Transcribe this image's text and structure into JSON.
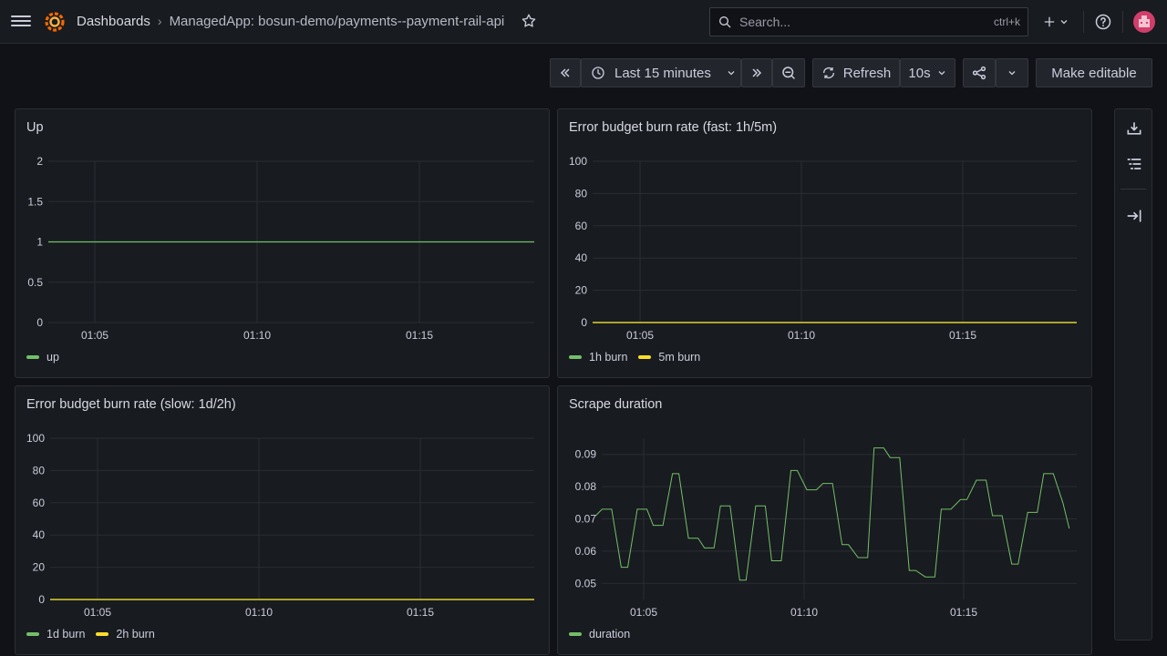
{
  "header": {
    "breadcrumb_root": "Dashboards",
    "breadcrumb_separator": "›",
    "breadcrumb_current": "ManagedApp: bosun-demo/payments--payment-rail-api",
    "search_placeholder": "Search...",
    "search_shortcut": "ctrl+k"
  },
  "toolbar": {
    "time_range": "Last 15 minutes",
    "refresh_label": "Refresh",
    "refresh_interval": "10s",
    "make_editable": "Make editable"
  },
  "panels": {
    "up": {
      "title": "Up",
      "y_ticks": [
        "2",
        "1.5",
        "1",
        "0.5",
        "0"
      ],
      "x_ticks": [
        "01:05",
        "01:10",
        "01:15"
      ],
      "legend": [
        {
          "name": "up",
          "color": "#73bf69"
        }
      ]
    },
    "fast": {
      "title": "Error budget burn rate (fast: 1h/5m)",
      "y_ticks": [
        "100",
        "80",
        "60",
        "40",
        "20",
        "0"
      ],
      "x_ticks": [
        "01:05",
        "01:10",
        "01:15"
      ],
      "legend": [
        {
          "name": "1h burn",
          "color": "#73bf69"
        },
        {
          "name": "5m burn",
          "color": "#fade2a"
        }
      ]
    },
    "slow": {
      "title": "Error budget burn rate (slow: 1d/2h)",
      "y_ticks": [
        "100",
        "80",
        "60",
        "40",
        "20",
        "0"
      ],
      "x_ticks": [
        "01:05",
        "01:10",
        "01:15"
      ],
      "legend": [
        {
          "name": "1d burn",
          "color": "#73bf69"
        },
        {
          "name": "2h burn",
          "color": "#fade2a"
        }
      ]
    },
    "scrape": {
      "title": "Scrape duration",
      "y_ticks": [
        "0.09",
        "0.08",
        "0.07",
        "0.06",
        "0.05"
      ],
      "x_ticks": [
        "01:05",
        "01:10",
        "01:15"
      ],
      "legend": [
        {
          "name": "duration",
          "color": "#73bf69"
        }
      ]
    }
  },
  "chart_data": [
    {
      "type": "line",
      "title": "Up",
      "x": [
        "01:03:30",
        "01:18:30"
      ],
      "ylim": [
        0,
        2
      ],
      "series": [
        {
          "name": "up",
          "values": [
            1,
            1
          ],
          "color": "#73bf69"
        }
      ]
    },
    {
      "type": "line",
      "title": "Error budget burn rate (fast: 1h/5m)",
      "x": [
        "01:03:30",
        "01:18:30"
      ],
      "ylim": [
        0,
        100
      ],
      "series": [
        {
          "name": "1h burn",
          "values": [
            0,
            0
          ],
          "color": "#73bf69"
        },
        {
          "name": "5m burn",
          "values": [
            0,
            0
          ],
          "color": "#fade2a"
        }
      ]
    },
    {
      "type": "line",
      "title": "Error budget burn rate (slow: 1d/2h)",
      "x": [
        "01:03:30",
        "01:18:30"
      ],
      "ylim": [
        0,
        100
      ],
      "series": [
        {
          "name": "1d burn",
          "values": [
            0,
            0
          ],
          "color": "#73bf69"
        },
        {
          "name": "2h burn",
          "values": [
            0,
            0
          ],
          "color": "#fade2a"
        }
      ]
    },
    {
      "type": "line",
      "title": "Scrape duration",
      "x_minutes": [
        3.5,
        3.7,
        4.0,
        4.3,
        4.5,
        4.8,
        5.1,
        5.3,
        5.6,
        5.9,
        6.1,
        6.4,
        6.7,
        6.9,
        7.2,
        7.4,
        7.7,
        8.0,
        8.2,
        8.5,
        8.8,
        9.0,
        9.3,
        9.6,
        9.8,
        10.1,
        10.4,
        10.6,
        10.9,
        11.2,
        11.4,
        11.7,
        12.0,
        12.2,
        12.5,
        12.7,
        13.0,
        13.3,
        13.5,
        13.8,
        14.1,
        14.3,
        14.6,
        14.9,
        15.1,
        15.4,
        15.7,
        15.9,
        16.2,
        16.5,
        16.7,
        17.0,
        17.3,
        17.5,
        17.8,
        18.1,
        18.3
      ],
      "ylim": [
        0.045,
        0.095
      ],
      "series": [
        {
          "name": "duration",
          "color": "#73bf69",
          "values": [
            0.071,
            0.073,
            0.073,
            0.055,
            0.055,
            0.073,
            0.073,
            0.068,
            0.068,
            0.084,
            0.084,
            0.064,
            0.064,
            0.061,
            0.061,
            0.074,
            0.074,
            0.051,
            0.051,
            0.074,
            0.074,
            0.057,
            0.057,
            0.085,
            0.085,
            0.079,
            0.079,
            0.081,
            0.081,
            0.062,
            0.062,
            0.058,
            0.058,
            0.092,
            0.092,
            0.089,
            0.089,
            0.054,
            0.054,
            0.052,
            0.052,
            0.073,
            0.073,
            0.076,
            0.076,
            0.082,
            0.082,
            0.071,
            0.071,
            0.056,
            0.056,
            0.072,
            0.072,
            0.084,
            0.084,
            0.075,
            0.067
          ]
        }
      ]
    }
  ]
}
